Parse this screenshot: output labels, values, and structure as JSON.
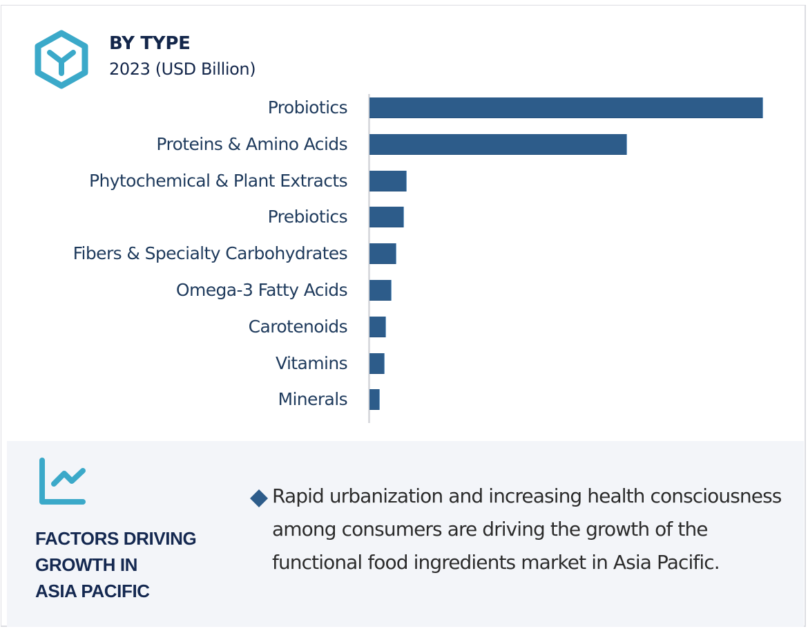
{
  "header": {
    "title": "BY TYPE",
    "subtitle": "2023 (USD Billion)",
    "icon": "hexagon-y-icon"
  },
  "colors": {
    "bar": "#2d5c8a",
    "icon_accent": "#3ba9c9",
    "heading": "#13264a",
    "label": "#1e3a5c",
    "panel_bg": "#f3f5f9",
    "bullet": "#2d5c8a"
  },
  "chart_data": {
    "type": "bar",
    "orientation": "horizontal",
    "title": "BY TYPE",
    "subtitle": "2023 (USD Billion)",
    "xlabel": "",
    "ylabel": "",
    "grid": false,
    "legend": null,
    "value_note": "No axis ticks shown; values are relative bar lengths (max = 100)",
    "categories": [
      "Probiotics",
      "Proteins & Amino Acids",
      "Phytochemical & Plant Extracts",
      "Prebiotics",
      "Fibers & Specialty Carbohydrates",
      "Omega-3 Fatty Acids",
      "Carotenoids",
      "Vitamins",
      "Minerals"
    ],
    "values": [
      100,
      65.4,
      9.5,
      8.8,
      6.8,
      5.6,
      4.2,
      3.9,
      2.6
    ],
    "xlim": [
      0,
      100
    ]
  },
  "factors": {
    "icon": "trend-chart-icon",
    "heading_lines": [
      "FACTORS DRIVING",
      "GROWTH IN",
      "ASIA PACIFIC"
    ],
    "bullet_icon": "diamond-bullet-icon",
    "points": [
      "Rapid urbanization and increasing health consciousness among consumers are driving the growth of the functional food ingredients market in Asia Pacific."
    ]
  }
}
